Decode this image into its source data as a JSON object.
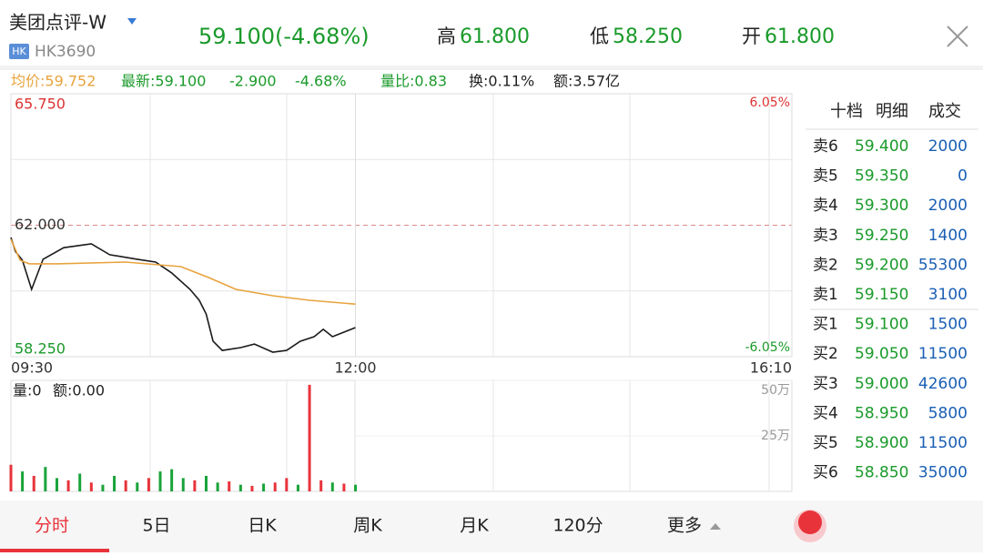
{
  "header": {
    "name": "美团点评-W",
    "market": "HK",
    "code": "HK3690",
    "price": "59.100(-4.68%)",
    "high_label": "高",
    "high": "61.800",
    "low_label": "低",
    "low": "58.250",
    "open_label": "开",
    "open": "61.800"
  },
  "stats": [
    "均价:59.752",
    "最新:59.100",
    "-2.900",
    "-4.68%",
    "量比:0.83",
    "换:0.11%",
    "额:3.57亿"
  ],
  "chart_data": [
    {
      "type": "line",
      "xlim": [
        0,
        340
      ],
      "xticks": [
        {
          "value": 0,
          "label": "09:30"
        },
        {
          "value": 150,
          "label": "12:00"
        },
        {
          "value": 340,
          "label": "16:10"
        }
      ],
      "ylim": [
        58.25,
        65.75
      ],
      "yticks": [
        {
          "value": 65.75,
          "label": "65.750"
        },
        {
          "value": 62,
          "label": "62.000"
        },
        {
          "value": 58.25,
          "label": "58.250"
        }
      ],
      "y2lim": [
        -6.05,
        6.05
      ],
      "y2ticks": [
        {
          "value": 6.05,
          "label": "6.05%"
        },
        {
          "value": -6.05,
          "label": "-6.05%"
        }
      ],
      "series": [
        {
          "color": "#1a1a1a",
          "x": [
            0,
            2,
            5,
            9,
            14,
            23,
            35,
            43,
            55,
            63,
            70,
            78,
            82,
            85,
            88,
            92,
            100,
            106,
            114,
            120,
            126,
            132,
            136,
            140,
            150
          ],
          "values": [
            61.65,
            61.25,
            61.0,
            60.17,
            61.03,
            61.36,
            61.47,
            61.16,
            61.03,
            60.95,
            60.64,
            60.17,
            59.86,
            59.47,
            58.69,
            58.43,
            58.51,
            58.61,
            58.38,
            58.43,
            58.69,
            58.82,
            59.03,
            58.82,
            59.08
          ]
        },
        {
          "color": "#e8a33d",
          "x": [
            0,
            4,
            8,
            20,
            50,
            74,
            86,
            98,
            114,
            130,
            150
          ],
          "values": [
            61.6,
            61.0,
            60.9,
            60.9,
            60.95,
            60.82,
            60.51,
            60.17,
            59.99,
            59.86,
            59.75
          ]
        }
      ]
    },
    {
      "type": "bar",
      "volume_label": "量:0",
      "amount_label": "额:0.00",
      "xlim": [
        0,
        340
      ],
      "ylim": [
        0,
        500000
      ],
      "yticks": [
        {
          "value": 250000,
          "label": "25万"
        },
        {
          "value": 500000,
          "label": "50万"
        }
      ],
      "x": [
        0,
        5,
        10,
        15,
        20,
        25,
        30,
        35,
        40,
        45,
        50,
        55,
        60,
        65,
        70,
        75,
        80,
        85,
        90,
        95,
        100,
        105,
        110,
        115,
        120,
        125,
        130,
        135,
        140,
        145,
        150
      ],
      "values": [
        120000,
        90000,
        70000,
        110000,
        60000,
        50000,
        80000,
        40000,
        30000,
        70000,
        50000,
        40000,
        60000,
        90000,
        100000,
        60000,
        50000,
        70000,
        40000,
        45000,
        30000,
        25000,
        35000,
        40000,
        60000,
        30000,
        480000,
        50000,
        40000,
        35000,
        30000
      ],
      "colors": [
        "#e8333b",
        "#1aa33a",
        "#e8333b",
        "#1aa33a",
        "#1aa33a",
        "#e8333b",
        "#1aa33a",
        "#e8333b",
        "#1aa33a",
        "#1aa33a",
        "#e8333b",
        "#1aa33a",
        "#e8333b",
        "#1aa33a",
        "#1aa33a",
        "#1aa33a",
        "#e8333b",
        "#1aa33a",
        "#1aa33a",
        "#e8333b",
        "#1aa33a",
        "#e8333b",
        "#1aa33a",
        "#e8333b",
        "#e8333b",
        "#1aa33a",
        "#e8333b",
        "#e8333b",
        "#1aa33a",
        "#e8333b",
        "#1aa33a"
      ]
    }
  ],
  "order_book": {
    "tabs": [
      "十档",
      "明细",
      "成交"
    ],
    "rows": [
      [
        "卖6",
        "59.400",
        2000
      ],
      [
        "卖5",
        "59.350",
        0
      ],
      [
        "卖4",
        "59.300",
        2000
      ],
      [
        "卖3",
        "59.250",
        1400
      ],
      [
        "卖2",
        "59.200",
        55300
      ],
      [
        "卖1",
        "59.150",
        3100
      ],
      [
        "买1",
        "59.100",
        1500
      ],
      [
        "买2",
        "59.050",
        11500
      ],
      [
        "买3",
        "59.000",
        42600
      ],
      [
        "买4",
        "58.950",
        5800
      ],
      [
        "买5",
        "58.900",
        11500
      ],
      [
        "买6",
        "58.850",
        35000
      ]
    ]
  },
  "tabs": [
    "分时",
    "5日",
    "日K",
    "周K",
    "月K",
    "120分",
    "更多"
  ]
}
